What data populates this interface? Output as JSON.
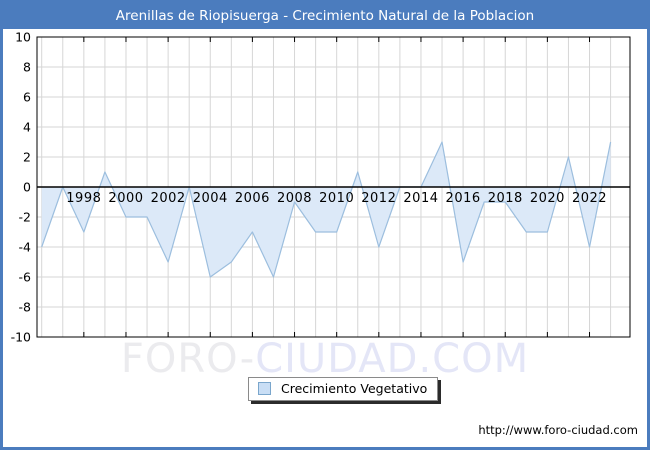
{
  "window": {
    "title": "Arenillas de Riopisuerga - Crecimiento Natural de la Poblacion"
  },
  "chart_data": {
    "type": "area",
    "title": "Arenillas de Riopisuerga - Crecimiento Natural de la Poblacion",
    "series_name": "Crecimiento Vegetativo",
    "x": [
      1996,
      1997,
      1998,
      1999,
      2000,
      2001,
      2002,
      2003,
      2004,
      2005,
      2006,
      2007,
      2008,
      2009,
      2010,
      2011,
      2012,
      2013,
      2014,
      2015,
      2016,
      2017,
      2018,
      2019,
      2020,
      2021,
      2022,
      2023
    ],
    "values": [
      -4,
      0,
      -3,
      1,
      -2,
      -2,
      -5,
      0,
      -6,
      -5,
      -3,
      -6,
      -1,
      -3,
      -3,
      1,
      -4,
      0,
      0,
      3,
      -5,
      -1,
      -1,
      -3,
      -3,
      2,
      -4,
      3
    ],
    "ylim": [
      -10,
      10
    ],
    "yticks": [
      10,
      8,
      6,
      4,
      2,
      0,
      -2,
      -4,
      -6,
      -8,
      -10
    ],
    "xticks": [
      1998,
      2000,
      2002,
      2004,
      2006,
      2008,
      2010,
      2012,
      2014,
      2016,
      2018,
      2020,
      2022
    ],
    "grid": true,
    "legend_position": "bottom-center",
    "colors": {
      "titlebar": "#4b7cbe",
      "frame_border": "#4b7cbe",
      "area_fill": "#dce9f8",
      "area_line": "#9cbede",
      "gridline": "#d6d6d6",
      "zero_line": "#000000",
      "plot_border": "#000000",
      "tick": "#000000",
      "label": "#000000"
    }
  },
  "legend": {
    "swatch_icon": "blue-square-icon",
    "label": "Crecimiento Vegetativo"
  },
  "watermark": {
    "text_left": "FORO-",
    "text_right": "CIUDAD.COM"
  },
  "footer": {
    "url": "http://www.foro-ciudad.com"
  }
}
